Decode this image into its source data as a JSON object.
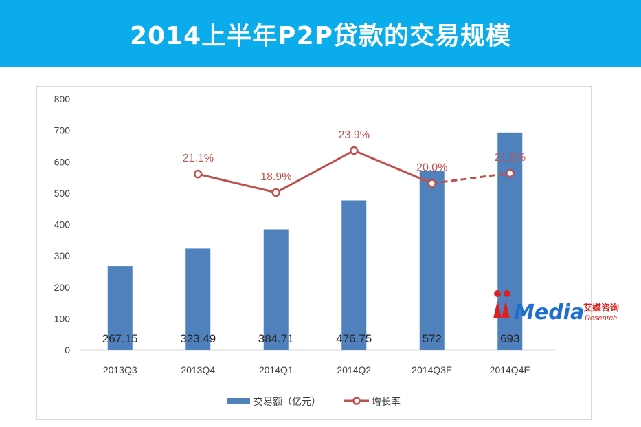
{
  "header": {
    "title": "2014上半年P2P贷款的交易规模"
  },
  "chart_data": {
    "type": "bar",
    "categories": [
      "2013Q3",
      "2013Q4",
      "2014Q1",
      "2014Q2",
      "2014Q3E",
      "2014Q4E"
    ],
    "y_ticks": [
      "0",
      "100",
      "200",
      "300",
      "400",
      "500",
      "600",
      "700",
      "800"
    ],
    "ylim": [
      0,
      800
    ],
    "series": [
      {
        "name": "交易额（亿元）",
        "type": "bar",
        "values": [
          267.15,
          323.49,
          384.71,
          476.75,
          572,
          693
        ],
        "labels": [
          "267.15",
          "323.49",
          "384.71",
          "476.75",
          "572",
          "693"
        ],
        "color": "#4f81bd"
      },
      {
        "name": "增长率",
        "type": "line",
        "values": [
          null,
          21.1,
          18.9,
          23.9,
          20.0,
          21.2
        ],
        "labels": [
          "",
          "21.1%",
          "18.9%",
          "23.9%",
          "20.0%",
          "21.2%"
        ],
        "color": "#c0504d",
        "dashed_from_index": 4
      }
    ],
    "legend": [
      "交易额（亿元）",
      "增长率"
    ],
    "legend_position": "bottom",
    "grid": false
  },
  "watermark": {
    "brand": "Media",
    "cn": "艾媒咨询",
    "sub": "Research"
  }
}
